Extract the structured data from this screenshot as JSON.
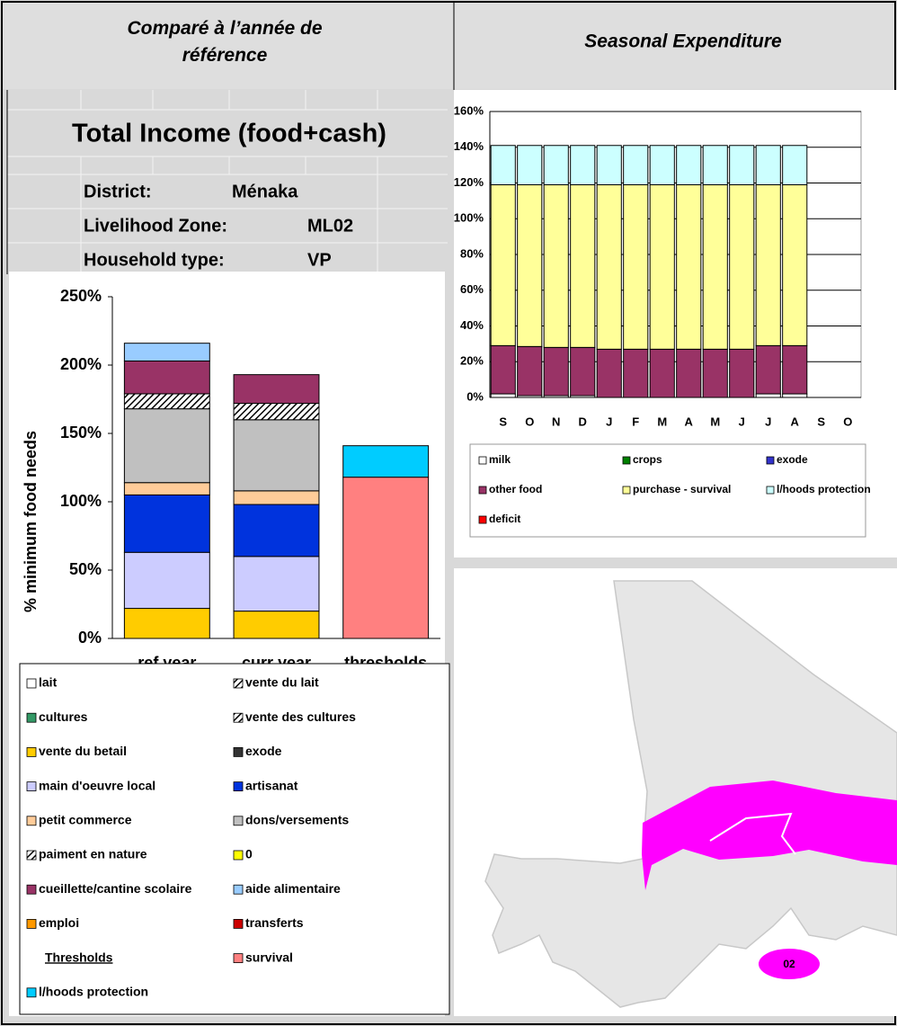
{
  "header": {
    "left_title": "Comparé à l’année de référence",
    "right_title": "Seasonal Expenditure"
  },
  "sheet": {
    "title": "Total Income (food+cash)",
    "rows": [
      [
        "District:",
        "Ménaka"
      ],
      [
        "Livelihood Zone:",
        "ML02"
      ],
      [
        "Household type:",
        "VP"
      ]
    ]
  },
  "map": {
    "label": "02"
  },
  "chart_data": [
    {
      "type": "bar",
      "stacked": true,
      "y_label": "% minimum food needs",
      "categories": [
        "ref year",
        "curr year",
        "thresholds"
      ],
      "ylim": [
        0,
        250
      ],
      "yticks": [
        {
          "value": 0,
          "label": "0%"
        },
        {
          "value": 50,
          "label": "50%"
        },
        {
          "value": 100,
          "label": "100%"
        },
        {
          "value": 150,
          "label": "150%"
        },
        {
          "value": 200,
          "label": "200%"
        },
        {
          "value": 250,
          "label": "250%"
        }
      ],
      "grid": false,
      "legend_heading": "Thresholds",
      "series": [
        {
          "name": "lait",
          "color": "#ffffff",
          "values": [
            0,
            0,
            0
          ]
        },
        {
          "name": "vente du lait",
          "color": "#ffffff",
          "pattern": "hatch",
          "values": [
            0,
            0,
            0
          ]
        },
        {
          "name": "cultures",
          "color": "#339966",
          "values": [
            0,
            0,
            0
          ]
        },
        {
          "name": "vente des cultures",
          "color": "#ffffff",
          "pattern": "hatch",
          "values": [
            0,
            0,
            0
          ]
        },
        {
          "name": "vente du betail",
          "color": "#ffcc00",
          "values": [
            22,
            20,
            0
          ]
        },
        {
          "name": "exode",
          "color": "#333333",
          "values": [
            0,
            0,
            0
          ]
        },
        {
          "name": "main d'oeuvre local",
          "color": "#ccccff",
          "values": [
            41,
            40,
            0
          ]
        },
        {
          "name": "artisanat",
          "color": "#0033dd",
          "values": [
            42,
            38,
            0
          ]
        },
        {
          "name": "petit commerce",
          "color": "#ffcc99",
          "values": [
            9,
            10,
            0
          ]
        },
        {
          "name": "dons/versements",
          "color": "#c0c0c0",
          "values": [
            54,
            52,
            0
          ]
        },
        {
          "name": "paiment en nature",
          "color": "#ffffff",
          "pattern": "hatch",
          "values": [
            11,
            12,
            0
          ]
        },
        {
          "name": "0",
          "color": "#ffff00",
          "values": [
            0,
            0,
            0
          ]
        },
        {
          "name": "cueillette/cantine scolaire",
          "color": "#993366",
          "values": [
            24,
            21,
            0
          ]
        },
        {
          "name": "aide alimentaire",
          "color": "#99ccff",
          "values": [
            13,
            0,
            0
          ]
        },
        {
          "name": "emploi",
          "color": "#ff9900",
          "values": [
            0,
            0,
            0
          ]
        },
        {
          "name": "transferts",
          "color": "#cc0000",
          "values": [
            0,
            0,
            0
          ]
        },
        {
          "name": "survival",
          "color": "#ff8080",
          "values": [
            0,
            0,
            118
          ]
        },
        {
          "name": "l/hoods protection",
          "color": "#00ccff",
          "values": [
            0,
            0,
            23
          ]
        }
      ]
    },
    {
      "type": "bar",
      "stacked": true,
      "categories": [
        "S",
        "O",
        "N",
        "D",
        "J",
        "F",
        "M",
        "A",
        "M",
        "J",
        "J",
        "A",
        "S",
        "O"
      ],
      "ylim": [
        0,
        160
      ],
      "yticks": [
        {
          "value": 0,
          "label": "0%"
        },
        {
          "value": 20,
          "label": "20%"
        },
        {
          "value": 40,
          "label": "40%"
        },
        {
          "value": 60,
          "label": "60%"
        },
        {
          "value": 80,
          "label": "80%"
        },
        {
          "value": 100,
          "label": "100%"
        },
        {
          "value": 120,
          "label": "120%"
        },
        {
          "value": 140,
          "label": "140%"
        },
        {
          "value": 160,
          "label": "160%"
        }
      ],
      "grid": true,
      "series": [
        {
          "name": "milk",
          "color": "#ffffff",
          "values": [
            2,
            1,
            1,
            1,
            0,
            0,
            0,
            0,
            0,
            0,
            2,
            2,
            null,
            null
          ]
        },
        {
          "name": "crops",
          "color": "#008000",
          "values": [
            0,
            0,
            0,
            0,
            0,
            0,
            0,
            0,
            0,
            0,
            0,
            0,
            null,
            null
          ]
        },
        {
          "name": "exode",
          "color": "#3333cc",
          "values": [
            0,
            0,
            0,
            0,
            0,
            0,
            0,
            0,
            0,
            0,
            0,
            0,
            null,
            null
          ]
        },
        {
          "name": "other food",
          "color": "#993366",
          "values": [
            27,
            27.5,
            27,
            27,
            27,
            27,
            27,
            27,
            27,
            27,
            27,
            27,
            null,
            null
          ]
        },
        {
          "name": "purchase - survival",
          "color": "#ffff99",
          "values": [
            90,
            90.5,
            91,
            91,
            92,
            92,
            92,
            92,
            92,
            92,
            90,
            90,
            null,
            null
          ]
        },
        {
          "name": "l/hoods protection",
          "color": "#ccffff",
          "values": [
            22,
            22,
            22,
            22,
            22,
            22,
            22,
            22,
            22,
            22,
            22,
            22,
            null,
            null
          ]
        },
        {
          "name": "deficit",
          "color": "#ff0000",
          "values": [
            0,
            0,
            0,
            0,
            0,
            0,
            0,
            0,
            0,
            0,
            0,
            0,
            null,
            null
          ]
        }
      ]
    }
  ]
}
